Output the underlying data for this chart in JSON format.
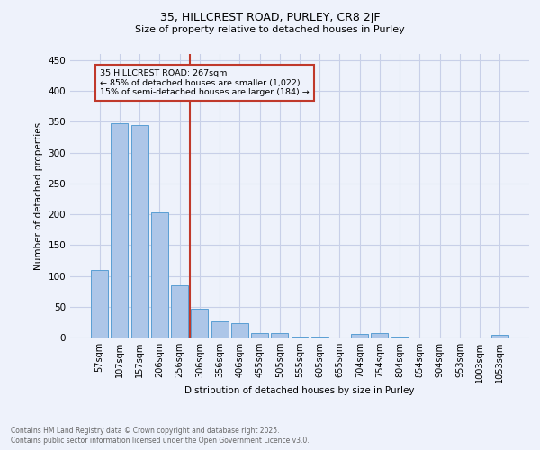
{
  "title1": "35, HILLCREST ROAD, PURLEY, CR8 2JF",
  "title2": "Size of property relative to detached houses in Purley",
  "xlabel": "Distribution of detached houses by size in Purley",
  "ylabel": "Number of detached properties",
  "annotation_line1": "35 HILLCREST ROAD: 267sqm",
  "annotation_line2": "← 85% of detached houses are smaller (1,022)",
  "annotation_line3": "15% of semi-detached houses are larger (184) →",
  "vline_pos": 4.5,
  "bar_categories": [
    "57sqm",
    "107sqm",
    "157sqm",
    "206sqm",
    "256sqm",
    "306sqm",
    "356sqm",
    "406sqm",
    "455sqm",
    "505sqm",
    "555sqm",
    "605sqm",
    "655sqm",
    "704sqm",
    "754sqm",
    "804sqm",
    "854sqm",
    "904sqm",
    "953sqm",
    "1003sqm",
    "1053sqm"
  ],
  "bar_values": [
    110,
    348,
    344,
    203,
    85,
    47,
    26,
    23,
    8,
    7,
    2,
    1,
    0,
    6,
    7,
    1,
    0,
    0,
    0,
    0,
    4
  ],
  "bar_color": "#adc6e8",
  "bar_edge_color": "#5a9fd4",
  "vline_color": "#c0392b",
  "background_color": "#eef2fb",
  "grid_color": "#c8d0e8",
  "ylim": [
    0,
    460
  ],
  "yticks": [
    0,
    50,
    100,
    150,
    200,
    250,
    300,
    350,
    400,
    450
  ],
  "footer_text": "Contains HM Land Registry data © Crown copyright and database right 2025.\nContains public sector information licensed under the Open Government Licence v3.0."
}
